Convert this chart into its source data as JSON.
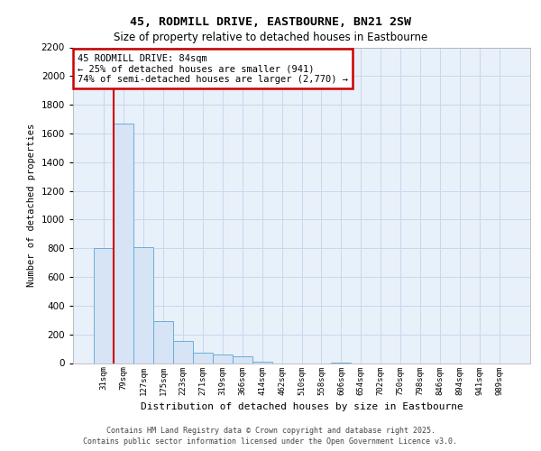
{
  "title_line1": "45, RODMILL DRIVE, EASTBOURNE, BN21 2SW",
  "title_line2": "Size of property relative to detached houses in Eastbourne",
  "xlabel": "Distribution of detached houses by size in Eastbourne",
  "ylabel": "Number of detached properties",
  "categories": [
    "31sqm",
    "79sqm",
    "127sqm",
    "175sqm",
    "223sqm",
    "271sqm",
    "319sqm",
    "366sqm",
    "414sqm",
    "462sqm",
    "510sqm",
    "558sqm",
    "606sqm",
    "654sqm",
    "702sqm",
    "750sqm",
    "798sqm",
    "846sqm",
    "894sqm",
    "941sqm",
    "989sqm"
  ],
  "values": [
    800,
    1670,
    810,
    290,
    155,
    70,
    60,
    50,
    12,
    0,
    0,
    0,
    5,
    0,
    0,
    0,
    0,
    0,
    0,
    0,
    0
  ],
  "bar_color": "#d6e4f5",
  "bar_edgecolor": "#6baed6",
  "annotation_text": "45 RODMILL DRIVE: 84sqm\n← 25% of detached houses are smaller (941)\n74% of semi-detached houses are larger (2,770) →",
  "annotation_box_edgecolor": "#cc0000",
  "vline_x": 1,
  "vline_color": "#cc0000",
  "ylim_max": 2200,
  "yticks": [
    0,
    200,
    400,
    600,
    800,
    1000,
    1200,
    1400,
    1600,
    1800,
    2000,
    2200
  ],
  "grid_color": "#c8d8ed",
  "background_color": "#e8f0fa",
  "footer_line1": "Contains HM Land Registry data © Crown copyright and database right 2025.",
  "footer_line2": "Contains public sector information licensed under the Open Government Licence v3.0."
}
